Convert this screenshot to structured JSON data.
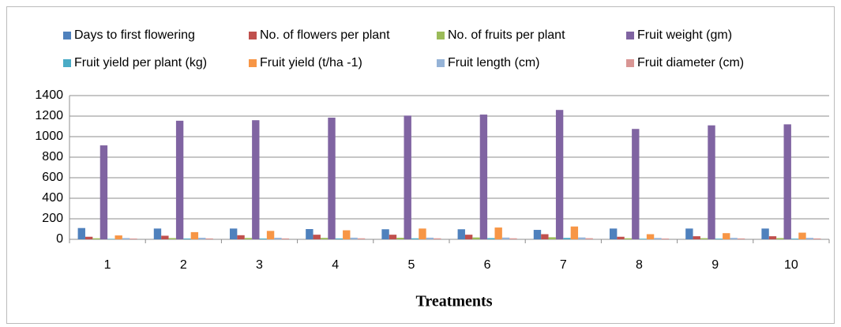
{
  "chart_data": {
    "type": "bar",
    "x_label": "Treatments",
    "categories": [
      "1",
      "2",
      "3",
      "4",
      "5",
      "6",
      "7",
      "8",
      "9",
      "10"
    ],
    "series": [
      {
        "name": "Days to first flowering",
        "color": "#4F81BD",
        "values": [
          110,
          105,
          105,
          100,
          98,
          98,
          92,
          105,
          105,
          105
        ]
      },
      {
        "name": "No. of flowers per plant",
        "color": "#C0504D",
        "values": [
          25,
          35,
          40,
          45,
          45,
          45,
          50,
          25,
          30,
          30
        ]
      },
      {
        "name": "No. of fruits per plant",
        "color": "#9BBB59",
        "values": [
          10,
          12,
          13,
          14,
          15,
          18,
          20,
          10,
          11,
          12
        ]
      },
      {
        "name": "Fruit weight (gm)",
        "color": "#8064A2",
        "values": [
          915,
          1155,
          1160,
          1185,
          1205,
          1215,
          1260,
          1075,
          1110,
          1120
        ]
      },
      {
        "name": "Fruit yield per plant (kg)",
        "color": "#4BACC6",
        "values": [
          5,
          8,
          8,
          9,
          10,
          12,
          14,
          6,
          7,
          7
        ]
      },
      {
        "name": "Fruit yield (t/ha -1)",
        "color": "#F79646",
        "values": [
          38,
          70,
          82,
          88,
          105,
          115,
          125,
          50,
          60,
          65
        ]
      },
      {
        "name": "Fruit length (cm)",
        "color": "#95B3D7",
        "values": [
          12,
          15,
          15,
          16,
          16,
          17,
          18,
          13,
          14,
          14
        ]
      },
      {
        "name": "Fruit diameter (cm)",
        "color": "#D99694",
        "values": [
          8,
          9,
          9,
          10,
          10,
          10,
          11,
          8,
          9,
          9
        ]
      }
    ],
    "ylim": [
      0,
      1400
    ],
    "yticks": [
      0,
      200,
      400,
      600,
      800,
      1000,
      1200,
      1400
    ],
    "grid": true
  }
}
